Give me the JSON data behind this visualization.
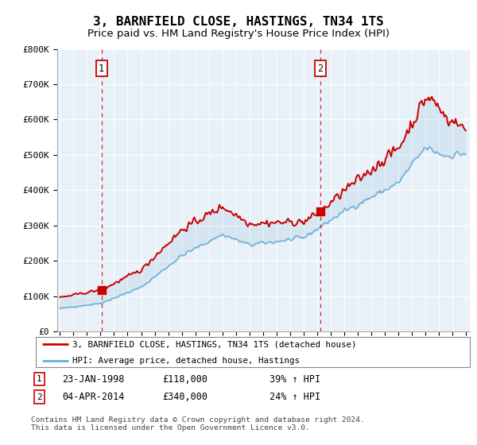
{
  "title": "3, BARNFIELD CLOSE, HASTINGS, TN34 1TS",
  "subtitle": "Price paid vs. HM Land Registry's House Price Index (HPI)",
  "title_fontsize": 11.5,
  "subtitle_fontsize": 9.5,
  "ylim": [
    0,
    800000
  ],
  "yticks": [
    0,
    100000,
    200000,
    300000,
    400000,
    500000,
    600000,
    700000,
    800000
  ],
  "ytick_labels": [
    "£0",
    "£100K",
    "£200K",
    "£300K",
    "£400K",
    "£500K",
    "£600K",
    "£700K",
    "£800K"
  ],
  "hpi_color": "#6baed6",
  "price_color": "#cc0000",
  "vline_color": "#cc0000",
  "bg_color": "#e8f0f8",
  "legend_label_price": "3, BARNFIELD CLOSE, HASTINGS, TN34 1TS (detached house)",
  "legend_label_hpi": "HPI: Average price, detached house, Hastings",
  "sale1_date": 1998.07,
  "sale1_price": 118000,
  "sale1_label": "1",
  "sale2_date": 2014.25,
  "sale2_price": 340000,
  "sale2_label": "2",
  "footer1": "Contains HM Land Registry data © Crown copyright and database right 2024.",
  "footer2": "This data is licensed under the Open Government Licence v3.0.",
  "table_rows": [
    {
      "num": "1",
      "date": "23-JAN-1998",
      "price": "£118,000",
      "hpi": "39% ↑ HPI"
    },
    {
      "num": "2",
      "date": "04-APR-2014",
      "price": "£340,000",
      "hpi": "24% ↑ HPI"
    }
  ]
}
